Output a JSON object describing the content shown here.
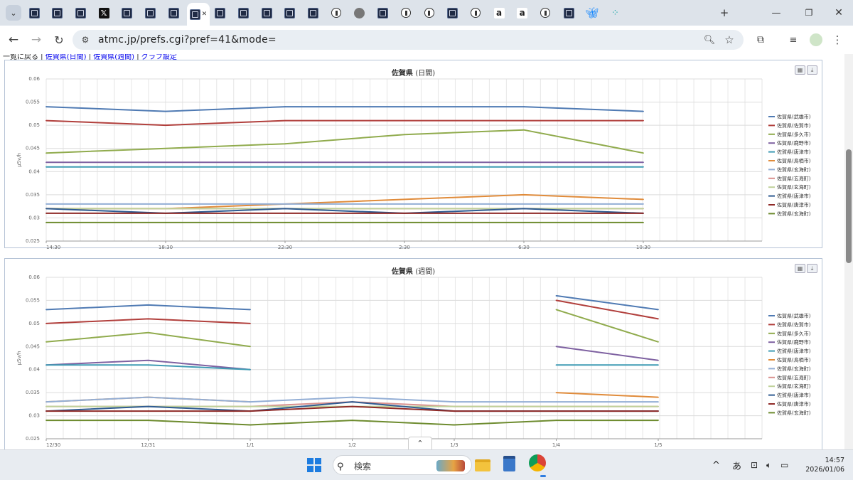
{
  "browser": {
    "tabs": [
      {
        "icon": "atmc-icon"
      },
      {
        "icon": "atmc-icon"
      },
      {
        "icon": "atmc-icon"
      },
      {
        "icon": "x-icon"
      },
      {
        "icon": "atmc-icon"
      },
      {
        "icon": "atmc-icon"
      },
      {
        "icon": "atmc-icon"
      },
      {
        "icon": "atmc-icon",
        "active": true
      },
      {
        "icon": "atmc-icon"
      },
      {
        "icon": "atmc-icon"
      },
      {
        "icon": "atmc-icon"
      },
      {
        "icon": "atmc-icon"
      },
      {
        "icon": "atmc-icon"
      },
      {
        "icon": "circle-icon"
      },
      {
        "icon": "globe-icon"
      },
      {
        "icon": "atmc-icon"
      },
      {
        "icon": "circle-icon"
      },
      {
        "icon": "circle-icon"
      },
      {
        "icon": "atmc-icon"
      },
      {
        "icon": "circle-icon"
      },
      {
        "icon": "amazon-icon"
      },
      {
        "icon": "amazon-icon"
      },
      {
        "icon": "circle-icon"
      },
      {
        "icon": "atmc-icon"
      },
      {
        "icon": "bluesky-icon"
      },
      {
        "icon": "dots-icon"
      }
    ],
    "url": "atmc.jp/prefs.cgi?pref=41&mode="
  },
  "page": {
    "crumb_text": "一覧に戻る | ",
    "crumb_links": [
      "佐賀県(日間)",
      "佐賀県(週間)",
      "グラフ設定"
    ]
  },
  "colors": {
    "blue": "#4f7ab3",
    "red": "#b13f3c",
    "green": "#90ab4d",
    "purple": "#7e61a1",
    "teal": "#3f9bb4",
    "orange": "#e08b3a",
    "lightblue": "#93aed5",
    "lightred": "#d9908e",
    "lightgreen": "#bfd19a",
    "darkblue": "#2f5b91",
    "darkred": "#8f2a27",
    "darkgreen": "#6d8b2e"
  },
  "charts": [
    {
      "title_main": "佐賀県",
      "title_sub": "(日間)",
      "ylabel": "μSv/h",
      "yticks": [
        "0.06",
        "0.055",
        "0.05",
        "0.045",
        "0.04",
        "0.035",
        "0.03",
        "0.025"
      ],
      "xticks": [
        "14:30",
        "18:30",
        "22:30",
        "2:30",
        "6:30",
        "10:30"
      ],
      "legend": [
        "佐賀県(武雄市)",
        "佐賀県(佐賀市)",
        "佐賀県(多久市)",
        "佐賀県(鹿野市)",
        "佐賀県(唐津市)",
        "佐賀県(鳥栖市)",
        "佐賀県(玄海町)",
        "佐賀県(玄海町)",
        "佐賀県(玄海町)",
        "佐賀県(唐津市)",
        "佐賀県(唐津市)",
        "佐賀県(玄海町)"
      ]
    },
    {
      "title_main": "佐賀県",
      "title_sub": "(週間)",
      "ylabel": "μSv/h",
      "yticks": [
        "0.06",
        "0.055",
        "0.05",
        "0.045",
        "0.04",
        "0.035",
        "0.03",
        "0.025"
      ],
      "xticks": [
        "12/30",
        "12/31",
        "1/1",
        "1/2",
        "1/3",
        "1/4",
        "1/5"
      ],
      "legend": [
        "佐賀県(武雄市)",
        "佐賀県(佐賀市)",
        "佐賀県(多久市)",
        "佐賀県(鹿野市)",
        "佐賀県(唐津市)",
        "佐賀県(鳥栖市)",
        "佐賀県(玄海町)",
        "佐賀県(玄海町)",
        "佐賀県(玄海町)",
        "佐賀県(唐津市)",
        "佐賀県(唐津市)",
        "佐賀県(玄海町)"
      ]
    }
  ],
  "chart_data": [
    {
      "type": "line",
      "title": "佐賀県 (日間)",
      "xlabel": "",
      "ylabel": "μSv/h",
      "ylim": [
        0.025,
        0.06
      ],
      "x": [
        "14:30",
        "18:30",
        "22:30",
        "2:30",
        "6:30",
        "10:30"
      ],
      "series": [
        {
          "name": "佐賀県(武雄市)",
          "color": "#4f7ab3",
          "values": [
            0.054,
            0.053,
            0.054,
            0.054,
            0.054,
            0.053
          ]
        },
        {
          "name": "佐賀県(佐賀市)",
          "color": "#b13f3c",
          "values": [
            0.051,
            0.05,
            0.051,
            0.051,
            0.051,
            0.051
          ]
        },
        {
          "name": "佐賀県(多久市)",
          "color": "#90ab4d",
          "values": [
            0.044,
            0.045,
            0.046,
            0.048,
            0.049,
            0.044
          ]
        },
        {
          "name": "佐賀県(鹿野市)",
          "color": "#7e61a1",
          "values": [
            0.042,
            0.042,
            0.042,
            0.042,
            0.042,
            0.042
          ]
        },
        {
          "name": "佐賀県(唐津市)",
          "color": "#3f9bb4",
          "values": [
            0.041,
            0.041,
            0.041,
            0.041,
            0.041,
            0.041
          ]
        },
        {
          "name": "佐賀県(鳥栖市)",
          "color": "#e08b3a",
          "values": [
            0.032,
            0.032,
            0.033,
            0.034,
            0.035,
            0.034
          ]
        },
        {
          "name": "佐賀県(玄海町)",
          "color": "#93aed5",
          "values": [
            0.033,
            0.033,
            0.033,
            0.033,
            0.033,
            0.033
          ]
        },
        {
          "name": "佐賀県(玄海町)",
          "color": "#d9908e",
          "values": [
            0.032,
            0.032,
            0.032,
            0.032,
            0.032,
            0.032
          ]
        },
        {
          "name": "佐賀県(玄海町)",
          "color": "#bfd19a",
          "values": [
            0.032,
            0.032,
            0.032,
            0.032,
            0.032,
            0.032
          ]
        },
        {
          "name": "佐賀県(唐津市)",
          "color": "#2f5b91",
          "values": [
            0.032,
            0.031,
            0.032,
            0.031,
            0.032,
            0.031
          ]
        },
        {
          "name": "佐賀県(唐津市)",
          "color": "#8f2a27",
          "values": [
            0.031,
            0.031,
            0.031,
            0.031,
            0.031,
            0.031
          ]
        },
        {
          "name": "佐賀県(玄海町)",
          "color": "#6d8b2e",
          "values": [
            0.029,
            0.029,
            0.029,
            0.029,
            0.029,
            0.029
          ]
        }
      ]
    },
    {
      "type": "line",
      "title": "佐賀県 (週間)",
      "xlabel": "",
      "ylabel": "μSv/h",
      "ylim": [
        0.025,
        0.06
      ],
      "x": [
        "12/30",
        "12/31",
        "1/1",
        "1/2",
        "1/3",
        "1/4",
        "1/5"
      ],
      "series": [
        {
          "name": "佐賀県(武雄市)",
          "color": "#4f7ab3",
          "values": [
            0.053,
            0.054,
            0.053,
            null,
            null,
            0.056,
            0.053
          ]
        },
        {
          "name": "佐賀県(佐賀市)",
          "color": "#b13f3c",
          "values": [
            0.05,
            0.051,
            0.05,
            null,
            null,
            0.055,
            0.051
          ]
        },
        {
          "name": "佐賀県(多久市)",
          "color": "#90ab4d",
          "values": [
            0.046,
            0.048,
            0.045,
            null,
            null,
            0.053,
            0.046
          ]
        },
        {
          "name": "佐賀県(鹿野市)",
          "color": "#7e61a1",
          "values": [
            0.041,
            0.042,
            0.04,
            null,
            null,
            0.045,
            0.042
          ]
        },
        {
          "name": "佐賀県(唐津市)",
          "color": "#3f9bb4",
          "values": [
            0.041,
            0.041,
            0.04,
            null,
            null,
            0.041,
            0.041
          ]
        },
        {
          "name": "佐賀県(鳥栖市)",
          "color": "#e08b3a",
          "values": [
            0.033,
            0.034,
            0.033,
            null,
            null,
            0.035,
            0.034
          ]
        },
        {
          "name": "佐賀県(玄海町)",
          "color": "#93aed5",
          "values": [
            0.033,
            0.034,
            0.033,
            0.034,
            0.033,
            0.033,
            0.033
          ]
        },
        {
          "name": "佐賀県(玄海町)",
          "color": "#d9908e",
          "values": [
            0.032,
            0.032,
            0.032,
            0.033,
            0.032,
            0.032,
            0.032
          ]
        },
        {
          "name": "佐賀県(玄海町)",
          "color": "#bfd19a",
          "values": [
            0.032,
            0.032,
            0.032,
            0.032,
            0.032,
            0.032,
            0.032
          ]
        },
        {
          "name": "佐賀県(唐津市)",
          "color": "#2f5b91",
          "values": [
            0.031,
            0.032,
            0.031,
            0.033,
            0.031,
            0.031,
            0.031
          ]
        },
        {
          "name": "佐賀県(唐津市)",
          "color": "#8f2a27",
          "values": [
            0.031,
            0.031,
            0.031,
            0.032,
            0.031,
            0.031,
            0.031
          ]
        },
        {
          "name": "佐賀県(玄海町)",
          "color": "#6d8b2e",
          "values": [
            0.029,
            0.029,
            0.028,
            0.029,
            0.028,
            0.029,
            0.029
          ]
        }
      ]
    }
  ],
  "taskbar": {
    "search_label": "検索",
    "ime": "あ",
    "time": "14:57",
    "date": "2026/01/06"
  }
}
